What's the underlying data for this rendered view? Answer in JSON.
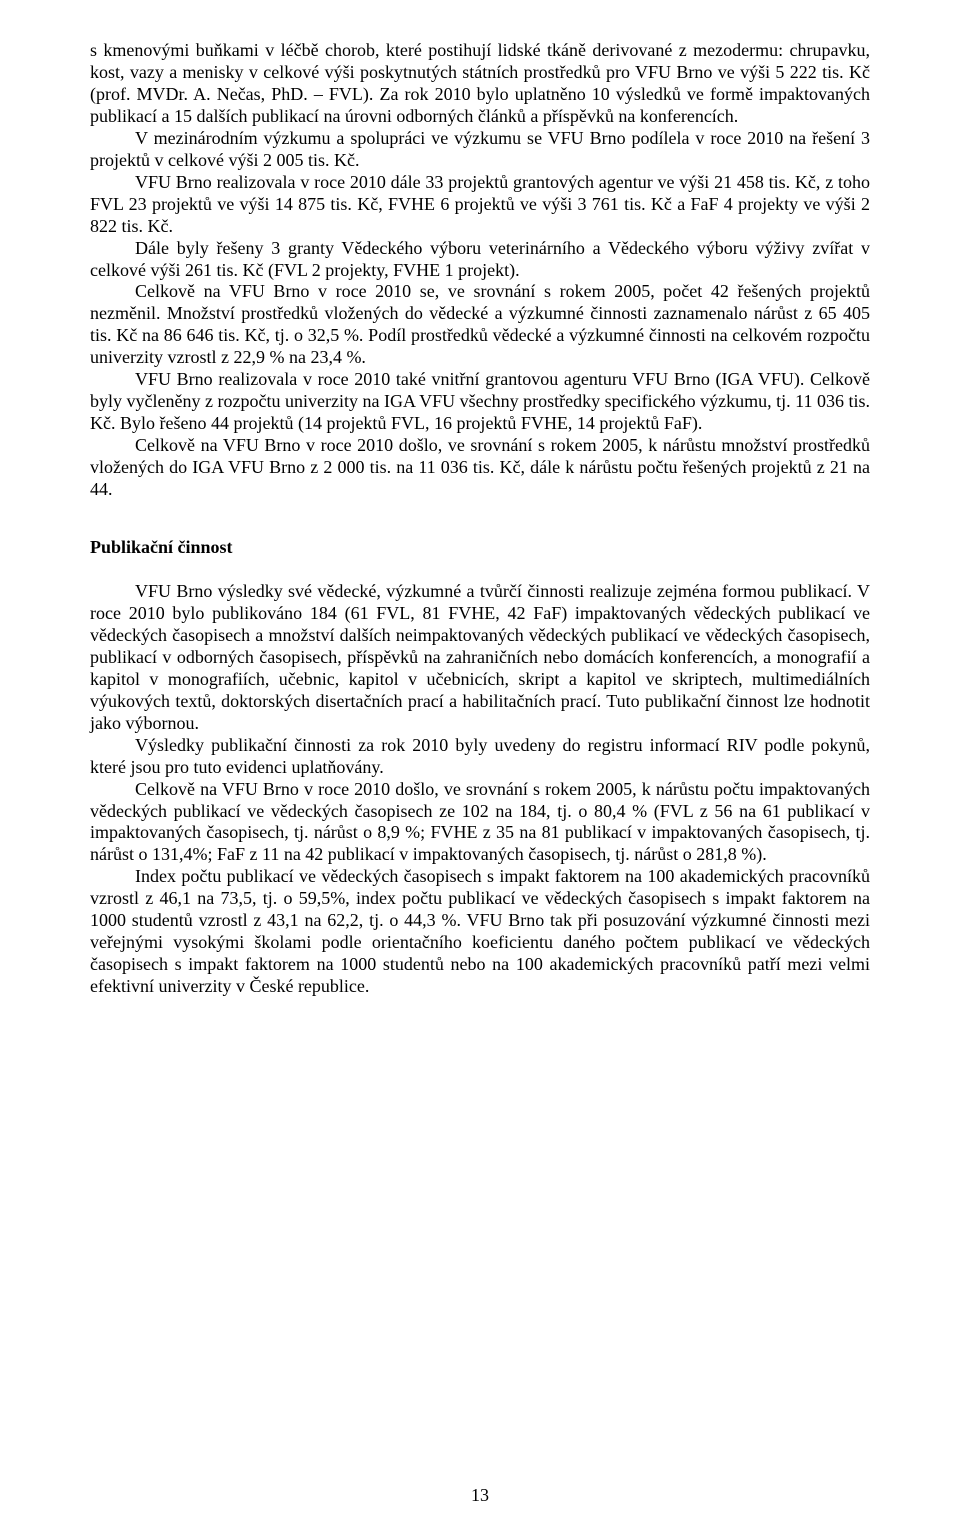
{
  "pageNumber": "13",
  "paragraphs": {
    "p1": "s kmenovými buňkami v léčbě chorob, které postihují lidské tkáně derivované z mezodermu: chrupavku, kost, vazy a menisky v celkové výši poskytnutých státních prostředků pro VFU Brno ve výši 5 222 tis. Kč (prof. MVDr. A. Nečas, PhD. – FVL). Za rok 2010 bylo uplatněno 10 výsledků ve formě impaktovaných publikací a 15 dalších publikací na úrovni odborných článků a příspěvků na konferencích.",
    "p2": "V mezinárodním výzkumu a spolupráci ve výzkumu se VFU Brno podílela v roce 2010 na řešení 3 projektů v celkové výši 2 005 tis. Kč.",
    "p3": "VFU Brno realizovala v roce 2010 dále 33 projektů grantových agentur ve výši 21 458 tis. Kč, z toho FVL 23 projektů ve výši 14 875 tis. Kč, FVHE 6 projektů ve výši 3 761 tis. Kč a FaF 4 projekty ve výši 2 822 tis. Kč.",
    "p4": "Dále byly řešeny 3 granty Vědeckého výboru veterinárního a Vědeckého výboru výživy zvířat v celkové výši 261 tis. Kč (FVL 2 projekty, FVHE 1 projekt).",
    "p5": "Celkově na VFU Brno v roce 2010 se, ve srovnání s rokem 2005, počet 42 řešených projektů nezměnil. Množství prostředků vložených do vědecké a výzkumné činnosti zaznamenalo nárůst z 65 405 tis. Kč na 86 646 tis. Kč, tj. o 32,5 %. Podíl prostředků vědecké a výzkumné činnosti na celkovém rozpočtu univerzity vzrostl z 22,9 % na 23,4 %.",
    "p6": "VFU Brno realizovala v roce 2010 také vnitřní grantovou agenturu VFU Brno (IGA VFU). Celkově byly vyčleněny z rozpočtu univerzity na IGA VFU všechny prostředky specifického výzkumu, tj. 11 036 tis. Kč. Bylo řešeno 44 projektů (14 projektů FVL, 16 projektů FVHE, 14 projektů FaF).",
    "p7": "Celkově na VFU Brno v roce 2010 došlo, ve srovnání s  rokem 2005, k nárůstu množství prostředků vložených do IGA VFU Brno z 2 000 tis. na 11 036 tis. Kč, dále k nárůstu počtu řešených projektů z 21 na 44.",
    "heading": "Publikační činnost",
    "p8": "VFU Brno výsledky své vědecké, výzkumné a tvůrčí činnosti realizuje zejména formou publikací. V roce 2010 bylo publikováno 184 (61 FVL, 81 FVHE, 42 FaF) impaktovaných vědeckých publikací ve vědeckých časopisech a množství dalších neimpaktovaných vědeckých publikací ve vědeckých časopisech, publikací v odborných časopisech, příspěvků na zahraničních nebo domácích konferencích, a monografií a kapitol v monografiích, učebnic, kapitol v učebnicích, skript a kapitol ve skriptech, multimediálních výukových textů, doktorských disertačních prací a  habilitačních prací. Tuto publikační činnost lze hodnotit jako výbornou.",
    "p9": "Výsledky publikační činnosti za rok 2010 byly uvedeny do registru informací RIV podle pokynů, které jsou pro tuto evidenci uplatňovány.",
    "p10": "Celkově na VFU Brno v roce 2010 došlo, ve srovnání s  rokem 2005, k nárůstu počtu impaktovaných vědeckých publikací ve vědeckých časopisech ze 102 na 184, tj. o 80,4 % (FVL z 56 na 61 publikací v impaktovaných časopisech, tj. nárůst o 8,9 %; FVHE z 35 na 81 publikací v impaktovaných časopisech, tj. nárůst o 131,4%; FaF z 11 na 42 publikací v impaktovaných časopisech, tj. nárůst o 281,8 %).",
    "p11": "Index počtu publikací ve vědeckých časopisech s impakt faktorem na 100 akademických pracovníků vzrostl z 46,1 na 73,5, tj. o 59,5%, index počtu publikací ve vědeckých časopisech s impakt faktorem na 1000 studentů vzrostl z 43,1 na 62,2, tj. o 44,3 %. VFU Brno tak při posuzování výzkumné činnosti mezi veřejnými vysokými školami podle orientačního koeficientu daného počtem publikací ve vědeckých časopisech s impakt faktorem na 1000 studentů nebo na 100 akademických pracovníků patří mezi velmi efektivní univerzity v České republice."
  }
}
